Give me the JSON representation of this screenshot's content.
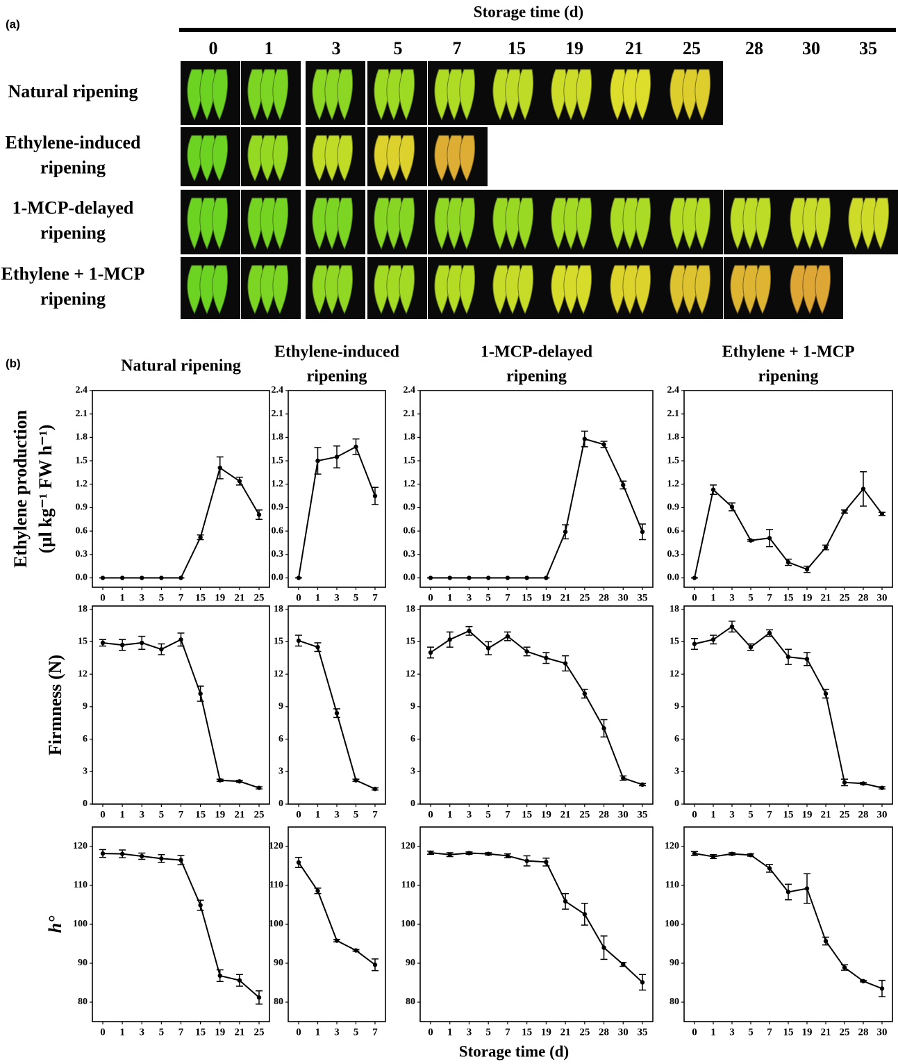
{
  "panel_a": {
    "label": "(a)",
    "header": "Storage time (d)",
    "days": [
      "0",
      "1",
      "3",
      "5",
      "7",
      "15",
      "19",
      "21",
      "25",
      "28",
      "30",
      "35"
    ],
    "row_labels": [
      [
        "Natural ripening"
      ],
      [
        "Ethylene-induced",
        "ripening"
      ],
      [
        "1-MCP-delayed",
        "ripening"
      ],
      [
        "Ethylene + 1-MCP",
        "ripening"
      ]
    ]
  },
  "panel_b": {
    "label": "(b)",
    "column_titles": [
      [
        "Natural ripening"
      ],
      [
        "Ethylene-induced",
        "ripening"
      ],
      [
        "1-MCP-delayed",
        "ripening"
      ],
      [
        "Ethylene + 1-MCP",
        "ripening"
      ]
    ],
    "row_labels": [
      [
        "Ethylene production",
        "(µl kg⁻¹ FW h⁻¹)"
      ],
      [
        "Firmness (N)"
      ],
      [
        "h°"
      ]
    ],
    "x_label": "Storage time (d)"
  },
  "chart_data": [
    {
      "type": "line",
      "categories": [
        "0",
        "1",
        "3",
        "5",
        "7",
        "15",
        "19",
        "21",
        "25"
      ],
      "ylim": [
        -0.12,
        2.4
      ],
      "yticks": [
        {
          "value": 0,
          "label": "0.0"
        },
        0.3,
        0.6,
        0.9,
        1.2,
        1.5,
        1.8,
        2.1,
        2.4
      ],
      "color": "#000000",
      "values": [
        0,
        0,
        0,
        0,
        0,
        0.52,
        1.41,
        1.24,
        0.81
      ],
      "errors": [
        0,
        0,
        0,
        0,
        0,
        0.03,
        0.14,
        0.05,
        0.06
      ]
    },
    {
      "type": "line",
      "categories": [
        "0",
        "1",
        "3",
        "5",
        "7"
      ],
      "ylim": [
        -0.12,
        2.4
      ],
      "yticks": [
        {
          "value": 0,
          "label": "0.0"
        },
        0.3,
        0.6,
        0.9,
        1.2,
        1.5,
        1.8,
        2.1,
        2.4
      ],
      "color": "#000000",
      "values": [
        0,
        1.5,
        1.55,
        1.68,
        1.05
      ],
      "errors": [
        0,
        0.17,
        0.14,
        0.1,
        0.11
      ]
    },
    {
      "type": "line",
      "categories": [
        "0",
        "1",
        "3",
        "5",
        "7",
        "15",
        "19",
        "21",
        "25",
        "28",
        "30",
        "35"
      ],
      "ylim": [
        -0.12,
        2.4
      ],
      "yticks": [
        {
          "value": 0,
          "label": "0.0"
        },
        0.3,
        0.6,
        0.9,
        1.2,
        1.5,
        1.8,
        2.1,
        2.4
      ],
      "color": "#000000",
      "values": [
        0,
        0,
        0,
        0,
        0,
        0,
        0,
        0.59,
        1.78,
        1.71,
        1.19,
        0.59
      ],
      "errors": [
        0,
        0,
        0,
        0,
        0,
        0,
        0,
        0.09,
        0.1,
        0.04,
        0.05,
        0.1
      ]
    },
    {
      "type": "line",
      "categories": [
        "0",
        "1",
        "3",
        "5",
        "7",
        "15",
        "19",
        "21",
        "25",
        "28",
        "30"
      ],
      "ylim": [
        -0.12,
        2.4
      ],
      "yticks": [
        {
          "value": 0,
          "label": "0.0"
        },
        0.3,
        0.6,
        0.9,
        1.2,
        1.5,
        1.8,
        2.1,
        2.4
      ],
      "color": "#000000",
      "values": [
        0,
        1.13,
        0.91,
        0.48,
        0.51,
        0.2,
        0.11,
        0.39,
        0.85,
        1.14,
        0.82
      ],
      "errors": [
        0,
        0.06,
        0.05,
        0.01,
        0.11,
        0.04,
        0.04,
        0.03,
        0.02,
        0.22,
        0.02
      ]
    },
    {
      "type": "line",
      "categories": [
        "0",
        "1",
        "3",
        "5",
        "7",
        "15",
        "19",
        "21",
        "25"
      ],
      "ylim": [
        0,
        18.3
      ],
      "yticks": [
        0,
        3,
        6,
        9,
        12,
        15,
        18
      ],
      "color": "#000000",
      "values": [
        14.9,
        14.7,
        14.9,
        14.3,
        15.2,
        10.2,
        2.2,
        2.1,
        1.5
      ],
      "errors": [
        0.3,
        0.5,
        0.6,
        0.5,
        0.6,
        0.7,
        0.1,
        0.1,
        0.1
      ]
    },
    {
      "type": "line",
      "categories": [
        "0",
        "1",
        "3",
        "5",
        "7"
      ],
      "ylim": [
        0,
        18.3
      ],
      "yticks": [
        0,
        3,
        6,
        9,
        12,
        15,
        18
      ],
      "color": "#000000",
      "values": [
        15.1,
        14.5,
        8.4,
        2.2,
        1.4
      ],
      "errors": [
        0.5,
        0.4,
        0.4,
        0.1,
        0.1
      ]
    },
    {
      "type": "line",
      "categories": [
        "0",
        "1",
        "3",
        "5",
        "7",
        "15",
        "19",
        "21",
        "25",
        "28",
        "30",
        "35"
      ],
      "ylim": [
        0,
        18.3
      ],
      "yticks": [
        0,
        3,
        6,
        9,
        12,
        15,
        18
      ],
      "color": "#000000",
      "values": [
        14.0,
        15.2,
        16.0,
        14.4,
        15.5,
        14.1,
        13.5,
        13.0,
        10.2,
        7.0,
        2.4,
        1.8
      ],
      "errors": [
        0.5,
        0.7,
        0.4,
        0.6,
        0.4,
        0.4,
        0.5,
        0.7,
        0.4,
        0.8,
        0.2,
        0.1
      ]
    },
    {
      "type": "line",
      "categories": [
        "0",
        "1",
        "3",
        "5",
        "7",
        "15",
        "19",
        "21",
        "25",
        "28",
        "30"
      ],
      "ylim": [
        0,
        18.3
      ],
      "yticks": [
        0,
        3,
        6,
        9,
        12,
        15,
        18
      ],
      "color": "#000000",
      "values": [
        14.8,
        15.2,
        16.4,
        14.5,
        15.8,
        13.6,
        13.4,
        10.2,
        2.0,
        1.9,
        1.5
      ],
      "errors": [
        0.5,
        0.4,
        0.5,
        0.3,
        0.3,
        0.7,
        0.6,
        0.4,
        0.3,
        0.1,
        0.1
      ]
    },
    {
      "type": "line",
      "categories": [
        "0",
        "1",
        "3",
        "5",
        "7",
        "15",
        "19",
        "21",
        "25"
      ],
      "ylim": [
        75,
        125
      ],
      "yticks": [
        80,
        90,
        100,
        110,
        120
      ],
      "color": "#000000",
      "values": [
        118.2,
        118.1,
        117.5,
        116.9,
        116.5,
        104.9,
        86.8,
        85.6,
        81.2
      ],
      "errors": [
        1,
        1,
        0.8,
        1,
        1.2,
        1.3,
        1.5,
        1.5,
        1.7
      ]
    },
    {
      "type": "line",
      "categories": [
        "0",
        "1",
        "3",
        "5",
        "7"
      ],
      "ylim": [
        75,
        125
      ],
      "yticks": [
        80,
        90,
        100,
        110,
        120
      ],
      "color": "#000000",
      "values": [
        115.9,
        108.6,
        95.8,
        93.3,
        89.6
      ],
      "errors": [
        1.3,
        0.7,
        0.3,
        0.2,
        1.5
      ]
    },
    {
      "type": "line",
      "categories": [
        "0",
        "1",
        "3",
        "5",
        "7",
        "15",
        "19",
        "21",
        "25",
        "28",
        "30",
        "35"
      ],
      "ylim": [
        75,
        125
      ],
      "yticks": [
        80,
        90,
        100,
        110,
        120
      ],
      "color": "#000000",
      "values": [
        118.4,
        117.9,
        118.3,
        118.1,
        117.6,
        116.3,
        116.0,
        105.9,
        102.6,
        94.0,
        89.7,
        85.1
      ],
      "errors": [
        0.4,
        0.5,
        0.3,
        0.3,
        0.5,
        1.3,
        1,
        2,
        2.8,
        3,
        0.5,
        2
      ]
    },
    {
      "type": "line",
      "categories": [
        "0",
        "1",
        "3",
        "5",
        "7",
        "15",
        "19",
        "21",
        "25",
        "28",
        "30"
      ],
      "ylim": [
        75,
        125
      ],
      "yticks": [
        80,
        90,
        100,
        110,
        120
      ],
      "color": "#000000",
      "values": [
        118.2,
        117.4,
        118.1,
        117.8,
        114.4,
        108.3,
        109.2,
        95.7,
        88.9,
        85.4,
        83.5
      ],
      "errors": [
        0.5,
        0.5,
        0.3,
        0.3,
        1,
        2,
        3.8,
        1,
        0.7,
        0.2,
        2.1
      ]
    }
  ]
}
